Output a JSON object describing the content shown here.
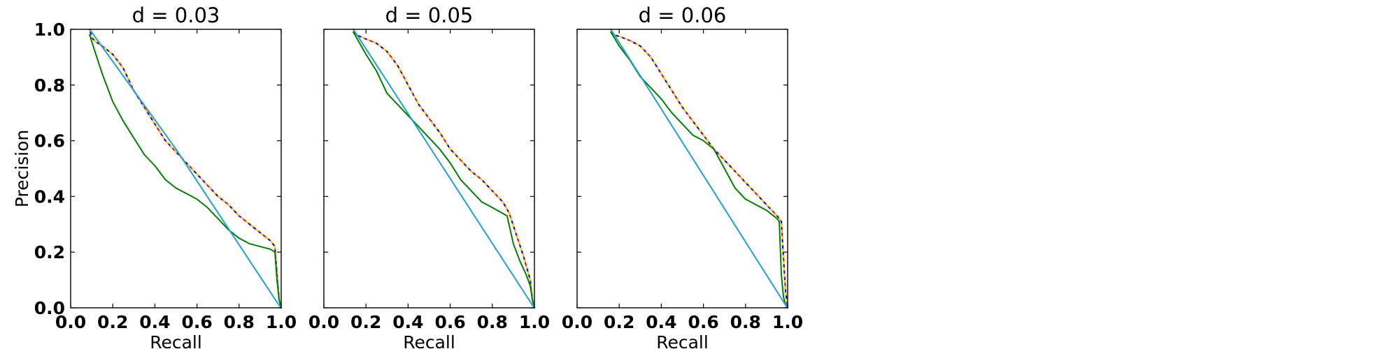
{
  "chart_data": [
    {
      "type": "line",
      "title": "d = 0.03",
      "xlabel": "Recall",
      "ylabel": "Precision",
      "xlim": [
        0.0,
        1.0
      ],
      "ylim": [
        0.0,
        1.0
      ],
      "xticks": [
        "0.0",
        "0.2",
        "0.4",
        "0.6",
        "0.8",
        "1.0"
      ],
      "yticks": [
        "0.0",
        "0.2",
        "0.4",
        "0.6",
        "0.8",
        "1.0"
      ],
      "grid": false,
      "series": [
        {
          "color": "#ff0000",
          "x": [
            0.09,
            0.1,
            0.12,
            0.15,
            0.2,
            0.25,
            0.3,
            0.35,
            0.4,
            0.45,
            0.5,
            0.55,
            0.6,
            0.65,
            0.7,
            0.75,
            0.8,
            0.85,
            0.9,
            0.95,
            0.97,
            0.98,
            0.99,
            1.0
          ],
          "y": [
            1.0,
            0.97,
            0.955,
            0.94,
            0.91,
            0.86,
            0.78,
            0.72,
            0.66,
            0.6,
            0.56,
            0.52,
            0.48,
            0.44,
            0.4,
            0.37,
            0.33,
            0.3,
            0.27,
            0.24,
            0.22,
            0.12,
            0.03,
            0.0
          ]
        },
        {
          "color": "#0000ff",
          "x": [
            0.09,
            0.1,
            0.12,
            0.15,
            0.2,
            0.25,
            0.3,
            0.35,
            0.4,
            0.45,
            0.5,
            0.55,
            0.6,
            0.65,
            0.7,
            0.75,
            0.8,
            0.85,
            0.9,
            0.95,
            0.97,
            0.98,
            0.99,
            1.0
          ],
          "y": [
            1.0,
            0.97,
            0.955,
            0.94,
            0.91,
            0.86,
            0.78,
            0.72,
            0.66,
            0.6,
            0.56,
            0.52,
            0.48,
            0.44,
            0.4,
            0.37,
            0.33,
            0.3,
            0.27,
            0.24,
            0.22,
            0.12,
            0.03,
            0.0
          ]
        },
        {
          "color": "#ffd700",
          "x": [
            0.09,
            0.1,
            0.12,
            0.15,
            0.2,
            0.25,
            0.3,
            0.35,
            0.4,
            0.45,
            0.5,
            0.55,
            0.6,
            0.65,
            0.7,
            0.75,
            0.8,
            0.85,
            0.9,
            0.95,
            0.97,
            0.98,
            0.99,
            1.0
          ],
          "y": [
            1.0,
            0.97,
            0.955,
            0.94,
            0.91,
            0.86,
            0.78,
            0.72,
            0.66,
            0.6,
            0.56,
            0.52,
            0.48,
            0.44,
            0.4,
            0.37,
            0.33,
            0.3,
            0.27,
            0.24,
            0.22,
            0.12,
            0.03,
            0.0
          ]
        },
        {
          "color": "#008000",
          "x": [
            0.09,
            0.12,
            0.15,
            0.2,
            0.25,
            0.3,
            0.35,
            0.4,
            0.45,
            0.5,
            0.55,
            0.6,
            0.65,
            0.7,
            0.75,
            0.8,
            0.85,
            0.9,
            0.95,
            0.97,
            0.98,
            0.99,
            1.0
          ],
          "y": [
            0.98,
            0.91,
            0.84,
            0.74,
            0.67,
            0.61,
            0.55,
            0.51,
            0.46,
            0.43,
            0.41,
            0.39,
            0.36,
            0.32,
            0.28,
            0.25,
            0.23,
            0.22,
            0.21,
            0.2,
            0.1,
            0.03,
            0.0
          ]
        },
        {
          "color": "#1ea0d8",
          "x": [
            0.09,
            0.5,
            0.98,
            1.0
          ],
          "y": [
            1.0,
            0.57,
            0.02,
            0.0
          ]
        }
      ]
    },
    {
      "type": "line",
      "title": "d = 0.05",
      "xlabel": "Recall",
      "ylabel": "",
      "xlim": [
        0.0,
        1.0
      ],
      "ylim": [
        0.0,
        1.0
      ],
      "xticks": [
        "0.0",
        "0.2",
        "0.4",
        "0.6",
        "0.8",
        "1.0"
      ],
      "yticks": [],
      "grid": false,
      "series": [
        {
          "color": "#ff0000",
          "x": [
            0.14,
            0.15,
            0.17,
            0.2,
            0.25,
            0.3,
            0.35,
            0.4,
            0.45,
            0.5,
            0.55,
            0.6,
            0.65,
            0.7,
            0.75,
            0.8,
            0.85,
            0.88,
            0.92,
            0.95,
            0.98,
            0.99,
            1.0
          ],
          "y": [
            1.0,
            0.98,
            0.975,
            0.965,
            0.95,
            0.92,
            0.87,
            0.8,
            0.73,
            0.68,
            0.63,
            0.57,
            0.53,
            0.49,
            0.46,
            0.42,
            0.38,
            0.34,
            0.25,
            0.18,
            0.1,
            0.03,
            0.0
          ]
        },
        {
          "color": "#0000ff",
          "x": [
            0.14,
            0.15,
            0.17,
            0.2,
            0.25,
            0.3,
            0.35,
            0.4,
            0.45,
            0.5,
            0.55,
            0.6,
            0.65,
            0.7,
            0.75,
            0.8,
            0.85,
            0.88,
            0.92,
            0.95,
            0.98,
            0.99,
            1.0
          ],
          "y": [
            1.0,
            0.98,
            0.975,
            0.965,
            0.95,
            0.92,
            0.87,
            0.8,
            0.73,
            0.68,
            0.63,
            0.57,
            0.53,
            0.49,
            0.46,
            0.42,
            0.38,
            0.34,
            0.25,
            0.18,
            0.1,
            0.03,
            0.0
          ]
        },
        {
          "color": "#ffd700",
          "x": [
            0.14,
            0.15,
            0.17,
            0.2,
            0.25,
            0.3,
            0.35,
            0.4,
            0.45,
            0.5,
            0.55,
            0.6,
            0.65,
            0.7,
            0.75,
            0.8,
            0.85,
            0.88,
            0.92,
            0.95,
            0.98,
            0.99,
            1.0
          ],
          "y": [
            1.0,
            0.98,
            0.975,
            0.965,
            0.95,
            0.92,
            0.87,
            0.8,
            0.73,
            0.68,
            0.63,
            0.57,
            0.53,
            0.49,
            0.46,
            0.42,
            0.38,
            0.34,
            0.25,
            0.18,
            0.1,
            0.03,
            0.0
          ]
        },
        {
          "color": "#008000",
          "x": [
            0.14,
            0.17,
            0.2,
            0.25,
            0.3,
            0.35,
            0.4,
            0.45,
            0.5,
            0.55,
            0.6,
            0.65,
            0.7,
            0.75,
            0.8,
            0.87,
            0.9,
            0.93,
            0.96,
            0.98,
            0.99,
            1.0
          ],
          "y": [
            0.99,
            0.95,
            0.91,
            0.85,
            0.77,
            0.73,
            0.69,
            0.65,
            0.61,
            0.57,
            0.52,
            0.46,
            0.42,
            0.38,
            0.36,
            0.33,
            0.23,
            0.17,
            0.12,
            0.08,
            0.03,
            0.0
          ]
        },
        {
          "color": "#1ea0d8",
          "x": [
            0.14,
            0.99,
            1.0
          ],
          "y": [
            1.0,
            0.01,
            0.0
          ]
        }
      ]
    },
    {
      "type": "line",
      "title": "d = 0.06",
      "xlabel": "Recall",
      "ylabel": "",
      "xlim": [
        0.0,
        1.0
      ],
      "ylim": [
        0.0,
        1.0
      ],
      "xticks": [
        "0.0",
        "0.2",
        "0.4",
        "0.6",
        "0.8",
        "1.0"
      ],
      "yticks": [],
      "grid": false,
      "series": [
        {
          "color": "#ff0000",
          "x": [
            0.16,
            0.17,
            0.2,
            0.25,
            0.3,
            0.35,
            0.4,
            0.45,
            0.5,
            0.55,
            0.6,
            0.65,
            0.7,
            0.75,
            0.8,
            0.85,
            0.9,
            0.95,
            0.97,
            0.98,
            0.99,
            1.0
          ],
          "y": [
            1.0,
            0.98,
            0.975,
            0.96,
            0.94,
            0.9,
            0.84,
            0.78,
            0.72,
            0.67,
            0.62,
            0.57,
            0.53,
            0.49,
            0.45,
            0.41,
            0.37,
            0.33,
            0.31,
            0.18,
            0.06,
            0.0
          ]
        },
        {
          "color": "#0000ff",
          "x": [
            0.16,
            0.17,
            0.2,
            0.25,
            0.3,
            0.35,
            0.4,
            0.45,
            0.5,
            0.55,
            0.6,
            0.65,
            0.7,
            0.75,
            0.8,
            0.85,
            0.9,
            0.95,
            0.97,
            0.98,
            0.99,
            1.0
          ],
          "y": [
            1.0,
            0.98,
            0.975,
            0.96,
            0.94,
            0.9,
            0.84,
            0.78,
            0.72,
            0.67,
            0.62,
            0.57,
            0.53,
            0.49,
            0.45,
            0.41,
            0.37,
            0.33,
            0.31,
            0.18,
            0.06,
            0.0
          ]
        },
        {
          "color": "#ffd700",
          "x": [
            0.16,
            0.17,
            0.2,
            0.25,
            0.3,
            0.35,
            0.4,
            0.45,
            0.5,
            0.55,
            0.6,
            0.65,
            0.7,
            0.75,
            0.8,
            0.85,
            0.9,
            0.95,
            0.97,
            0.98,
            0.99,
            1.0
          ],
          "y": [
            1.0,
            0.98,
            0.975,
            0.96,
            0.94,
            0.9,
            0.84,
            0.78,
            0.72,
            0.67,
            0.62,
            0.57,
            0.53,
            0.49,
            0.45,
            0.41,
            0.37,
            0.33,
            0.31,
            0.18,
            0.06,
            0.0
          ]
        },
        {
          "color": "#008000",
          "x": [
            0.16,
            0.2,
            0.25,
            0.3,
            0.35,
            0.4,
            0.45,
            0.5,
            0.55,
            0.6,
            0.65,
            0.7,
            0.75,
            0.8,
            0.85,
            0.9,
            0.95,
            0.96,
            0.97,
            0.98,
            0.99,
            1.0
          ],
          "y": [
            0.99,
            0.94,
            0.89,
            0.83,
            0.79,
            0.75,
            0.7,
            0.66,
            0.62,
            0.6,
            0.57,
            0.5,
            0.43,
            0.39,
            0.37,
            0.35,
            0.32,
            0.31,
            0.12,
            0.04,
            0.01,
            0.0
          ]
        },
        {
          "color": "#1ea0d8",
          "x": [
            0.16,
            0.99,
            1.0
          ],
          "y": [
            1.0,
            0.01,
            0.0
          ]
        }
      ]
    }
  ]
}
